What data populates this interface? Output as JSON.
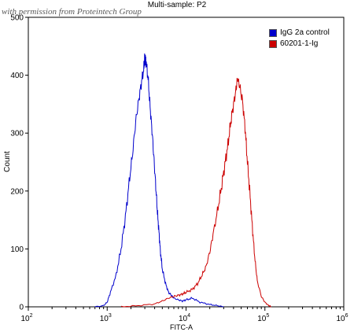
{
  "watermark": "with permission from Proteintech Group",
  "chart_data": {
    "type": "line",
    "title": "Multi-sample: P2",
    "xlabel": "FITC-A",
    "ylabel": "Count",
    "xscale": "log",
    "xlim": [
      100,
      1000000
    ],
    "ylim": [
      0,
      500
    ],
    "xticks": [
      {
        "value": 100,
        "base": "10",
        "exp": "2"
      },
      {
        "value": 1000,
        "base": "10",
        "exp": "3"
      },
      {
        "value": 10000,
        "base": "10",
        "exp": "4"
      },
      {
        "value": 100000,
        "base": "10",
        "exp": "5"
      },
      {
        "value": 1000000,
        "base": "10",
        "exp": "6"
      }
    ],
    "yticks": [
      0,
      100,
      200,
      300,
      400,
      500
    ],
    "legend_position": "top-right",
    "series": [
      {
        "name": "IgG 2a control",
        "color": "#0000cc",
        "x": [
          700,
          900,
          1000,
          1100,
          1300,
          1500,
          1700,
          1900,
          2100,
          2300,
          2500,
          2700,
          2900,
          3000,
          3100,
          3300,
          3500,
          3700,
          3900,
          4100,
          4300,
          4500,
          4700,
          5000,
          5500,
          6000,
          6500,
          7000,
          8000,
          9000,
          10000,
          12000,
          15000,
          20000,
          25000,
          30000
        ],
        "y": [
          0,
          2,
          8,
          25,
          55,
          100,
          155,
          215,
          265,
          320,
          355,
          385,
          410,
          430,
          425,
          395,
          345,
          305,
          260,
          215,
          170,
          135,
          100,
          65,
          40,
          25,
          20,
          15,
          12,
          10,
          12,
          15,
          8,
          4,
          2,
          0
        ]
      },
      {
        "name": "60201-1-Ig",
        "color": "#cc0000",
        "x": [
          1500,
          2500,
          4000,
          5000,
          6000,
          7000,
          8000,
          9000,
          10000,
          12000,
          14000,
          16000,
          18000,
          20000,
          22000,
          25000,
          28000,
          31000,
          34000,
          37000,
          40000,
          43000,
          45000,
          48000,
          52000,
          56000,
          60000,
          65000,
          70000,
          75000,
          80000,
          90000,
          100000,
          110000,
          120000
        ],
        "y": [
          0,
          2,
          5,
          10,
          15,
          18,
          20,
          22,
          25,
          30,
          40,
          55,
          70,
          95,
          125,
          165,
          205,
          245,
          280,
          320,
          350,
          375,
          395,
          380,
          355,
          310,
          250,
          190,
          130,
          80,
          45,
          18,
          8,
          3,
          0
        ]
      }
    ]
  }
}
